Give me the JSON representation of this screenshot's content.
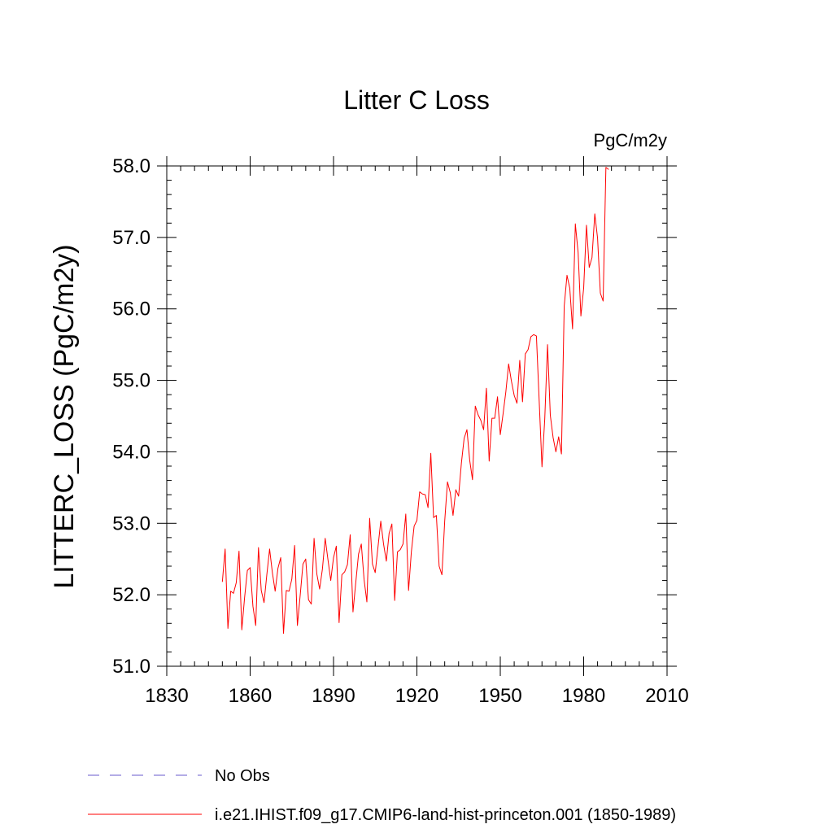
{
  "chart_data": {
    "type": "line",
    "title": "Litter C Loss",
    "units": "PgC/m2y",
    "ylabel": "LITTERC_LOSS  (PgC/m2y)",
    "xlabel": "",
    "xlim": [
      1830,
      2010
    ],
    "ylim": [
      51.0,
      58.0
    ],
    "xticks": [
      1830,
      1860,
      1890,
      1920,
      1950,
      1980,
      2010
    ],
    "xtick_labels": [
      "1830",
      "1860",
      "1890",
      "1920",
      "1950",
      "1980",
      "2010"
    ],
    "yticks": [
      51.0,
      52.0,
      53.0,
      54.0,
      55.0,
      56.0,
      57.0,
      58.0
    ],
    "ytick_labels": [
      "51.0",
      "52.0",
      "53.0",
      "54.0",
      "55.0",
      "56.0",
      "57.0",
      "58.0"
    ],
    "grid": false,
    "legend_position": "bottom-left",
    "series": [
      {
        "name": "No Obs",
        "color": "#6a5acd",
        "dash": true,
        "x": [],
        "y": []
      },
      {
        "name": "i.e21.IHIST.f09_g17.CMIP6-land-hist-princeton.001 (1850-1989)",
        "color": "#ff0000",
        "dash": false,
        "x": [
          1850,
          1851,
          1852,
          1853,
          1854,
          1855,
          1856,
          1857,
          1858,
          1859,
          1860,
          1861,
          1862,
          1863,
          1864,
          1865,
          1866,
          1867,
          1868,
          1869,
          1870,
          1871,
          1872,
          1873,
          1874,
          1875,
          1876,
          1877,
          1878,
          1879,
          1880,
          1881,
          1882,
          1883,
          1884,
          1885,
          1886,
          1887,
          1888,
          1889,
          1890,
          1891,
          1892,
          1893,
          1894,
          1895,
          1896,
          1897,
          1898,
          1899,
          1900,
          1901,
          1902,
          1903,
          1904,
          1905,
          1906,
          1907,
          1908,
          1909,
          1910,
          1911,
          1912,
          1913,
          1914,
          1915,
          1916,
          1917,
          1918,
          1919,
          1920,
          1921,
          1922,
          1923,
          1924,
          1925,
          1926,
          1927,
          1928,
          1929,
          1930,
          1931,
          1932,
          1933,
          1934,
          1935,
          1936,
          1937,
          1938,
          1939,
          1940,
          1941,
          1942,
          1943,
          1944,
          1945,
          1946,
          1947,
          1948,
          1949,
          1950,
          1951,
          1952,
          1953,
          1954,
          1955,
          1956,
          1957,
          1958,
          1959,
          1960,
          1961,
          1962,
          1963,
          1964,
          1965,
          1966,
          1967,
          1968,
          1969,
          1970,
          1971,
          1972,
          1973,
          1974,
          1975,
          1976,
          1977,
          1978,
          1979,
          1980,
          1981,
          1982,
          1983,
          1984,
          1985,
          1986,
          1987,
          1988,
          1989
        ],
        "y": [
          52.18,
          52.64,
          51.53,
          52.05,
          52.02,
          52.17,
          52.61,
          51.51,
          51.96,
          52.34,
          52.38,
          51.84,
          51.57,
          52.66,
          52.06,
          51.89,
          52.28,
          52.64,
          52.31,
          52.05,
          52.37,
          52.52,
          51.46,
          52.06,
          52.05,
          52.22,
          52.69,
          51.57,
          51.99,
          52.43,
          52.5,
          51.93,
          51.87,
          52.79,
          52.29,
          52.08,
          52.36,
          52.79,
          52.49,
          52.2,
          52.52,
          52.68,
          51.61,
          52.28,
          52.32,
          52.42,
          52.84,
          51.76,
          52.17,
          52.57,
          52.71,
          52.21,
          51.9,
          53.07,
          52.43,
          52.31,
          52.67,
          53.03,
          52.71,
          52.47,
          52.86,
          52.99,
          51.92,
          52.6,
          52.63,
          52.71,
          53.13,
          52.06,
          52.6,
          52.96,
          53.04,
          53.44,
          53.41,
          53.4,
          53.22,
          53.98,
          53.08,
          53.11,
          52.4,
          52.28,
          53.03,
          53.58,
          53.43,
          53.11,
          53.47,
          53.38,
          53.84,
          54.19,
          54.31,
          53.88,
          53.61,
          54.64,
          54.52,
          54.44,
          54.31,
          54.89,
          53.87,
          54.47,
          54.47,
          54.77,
          54.24,
          54.53,
          54.84,
          55.23,
          54.99,
          54.79,
          54.68,
          55.28,
          54.7,
          55.37,
          55.43,
          55.61,
          55.64,
          55.62,
          54.71,
          53.79,
          54.46,
          55.5,
          54.51,
          54.2,
          54.0,
          54.21,
          53.97,
          56.04,
          56.47,
          56.29,
          55.72,
          57.19,
          56.79,
          55.9,
          56.29,
          57.17,
          56.58,
          56.72,
          57.33,
          56.99,
          56.22,
          56.11,
          57.98,
          57.95
        ]
      }
    ]
  }
}
